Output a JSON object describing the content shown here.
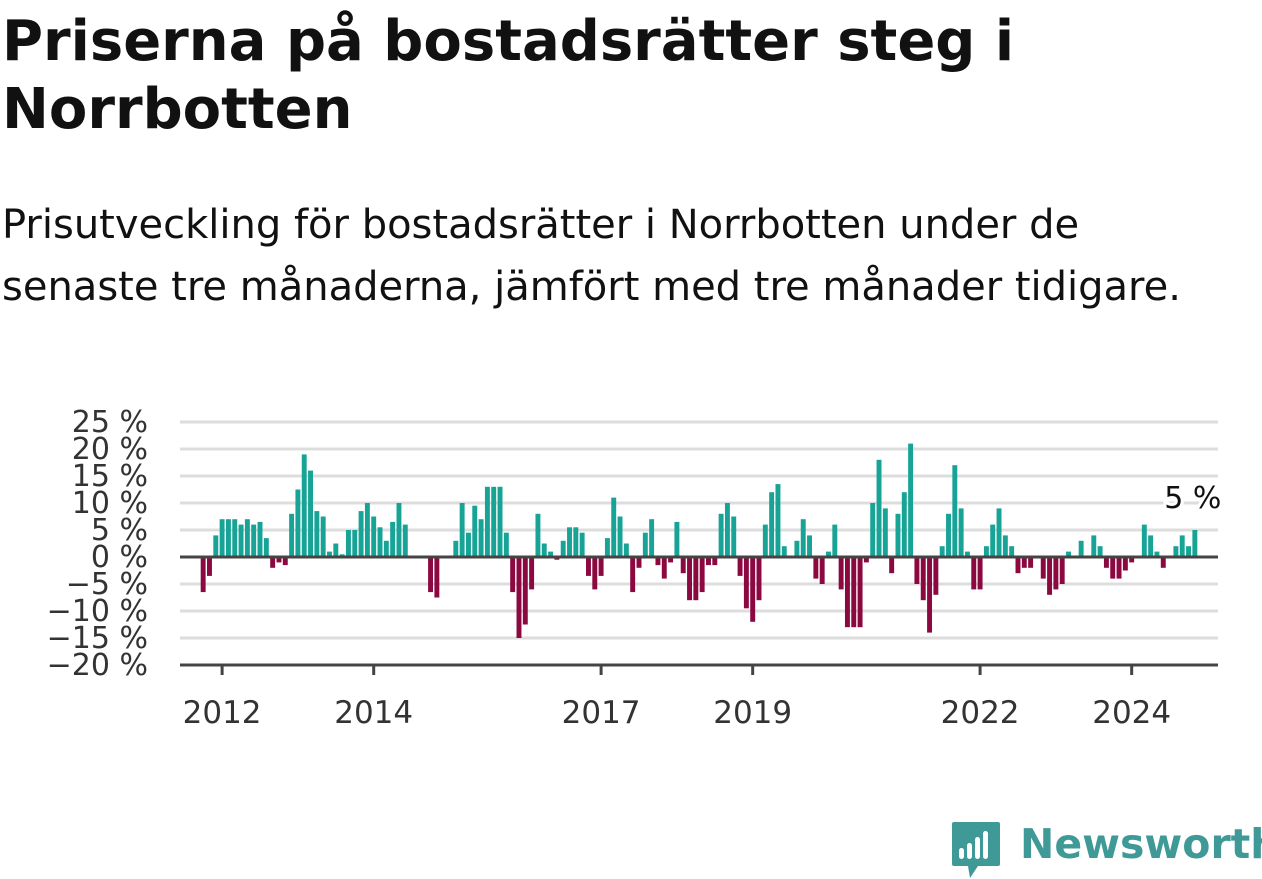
{
  "title": "Priserna på bostadsrätter steg i Norrbotten",
  "subtitle": "Prisutveckling för bostadsrätter i Norrbotten under de senaste tre månaderna, jämfört med tre månader tidigare.",
  "brand": {
    "name": "Newsworthy",
    "icon": "bar-chart-speech-bubble-icon",
    "color": "#3f9a97"
  },
  "chart_data": {
    "type": "bar",
    "x_start": "2011-10",
    "frequency": "monthly",
    "ylim": [
      -20,
      25
    ],
    "yticks": [
      25,
      20,
      15,
      10,
      5,
      0,
      -5,
      -10,
      -15,
      -20
    ],
    "ytick_labels": [
      "25 %",
      "20 %",
      "15 %",
      "10 %",
      "5 %",
      "0 %",
      "−5 %",
      "−10 %",
      "−15 %",
      "−20 %"
    ],
    "xtick_labels": [
      {
        "label": "2012",
        "month": "2012-01"
      },
      {
        "label": "2014",
        "month": "2014-01"
      },
      {
        "label": "2017",
        "month": "2017-01"
      },
      {
        "label": "2019",
        "month": "2019-01"
      },
      {
        "label": "2022",
        "month": "2022-01"
      },
      {
        "label": "2024",
        "month": "2024-01"
      }
    ],
    "grid": true,
    "colors": {
      "positive": "#17a497",
      "negative": "#8b0840",
      "grid": "#dddddd",
      "axis": "#444444"
    },
    "annotation": {
      "text": "5 %",
      "target": "last"
    },
    "values": [
      -6.5,
      -3.5,
      4,
      7,
      7,
      7,
      6,
      7,
      6,
      6.5,
      3.5,
      -2,
      -1,
      -1.5,
      8,
      12.5,
      19,
      16,
      8.5,
      7.5,
      1,
      2.5,
      0.5,
      5,
      5,
      8.5,
      10,
      7.5,
      5.5,
      3,
      6.5,
      10,
      6,
      0,
      0,
      0,
      -6.5,
      -7.5,
      0,
      0,
      3,
      10,
      4.5,
      9.5,
      7,
      13,
      13,
      13,
      4.5,
      -6.5,
      -15,
      -12.5,
      -6,
      8,
      2.5,
      1,
      -0.5,
      3,
      5.5,
      5.5,
      4.5,
      -3.5,
      -6,
      -3.5,
      3.5,
      11,
      7.5,
      2.5,
      -6.5,
      -2,
      4.5,
      7,
      -1.5,
      -4,
      -1,
      6.5,
      -3,
      -8,
      -8,
      -6.5,
      -1.5,
      -1.5,
      8,
      10,
      7.5,
      -3.5,
      -9.5,
      -12,
      -8,
      6,
      12,
      13.5,
      2,
      0,
      3,
      7,
      4,
      -4,
      -5,
      1,
      6,
      -6,
      -13,
      -13,
      -13,
      -1,
      10,
      18,
      9,
      -3,
      8,
      12,
      21,
      -5,
      -8,
      -14,
      -7,
      2,
      8,
      17,
      9,
      1,
      -6,
      -6,
      2,
      6,
      9,
      4,
      2,
      -3,
      -2,
      -2,
      0,
      -4,
      -7,
      -6,
      -5,
      1,
      0,
      3,
      0,
      4,
      2,
      -2,
      -4,
      -4,
      -2.5,
      -1,
      0,
      6,
      4,
      1,
      -2,
      0,
      2,
      4,
      2,
      5
    ]
  }
}
